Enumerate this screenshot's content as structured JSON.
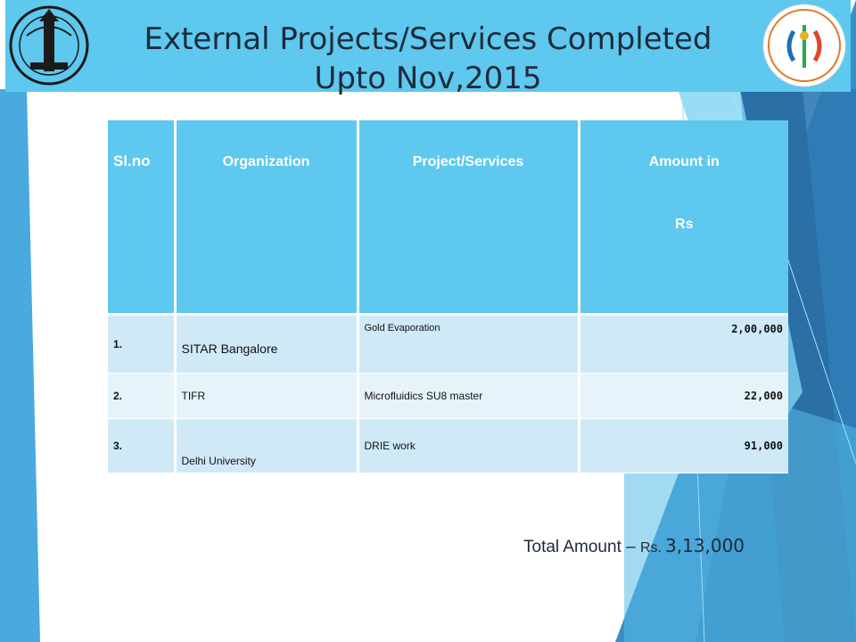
{
  "slide": {
    "title_line1": "External Projects/Services Completed",
    "title_line2": "Upto Nov,2015",
    "colors": {
      "header_bg": "#5ec8ee",
      "row_light": "#e6f3fb",
      "row_dark": "#cfe9f7",
      "accent_dark": "#2a6fa5"
    },
    "logos": {
      "left": "iisc-crest-icon",
      "right": "cense-logo-icon"
    }
  },
  "table": {
    "headers": {
      "sl": "Sl.no",
      "org": "Organization",
      "proj": "Project/Services",
      "amount_line1": "Amount in",
      "amount_line2": "Rs"
    },
    "rows": [
      {
        "sl": "1.",
        "organization": "SITAR Bangalore",
        "project": "Gold Evaporation",
        "amount": "2,00,000"
      },
      {
        "sl": "2.",
        "organization": "TIFR",
        "project": "Microfluidics SU8 master",
        "amount": "22,000"
      },
      {
        "sl": "3.",
        "organization": "Delhi University",
        "project": "DRIE work",
        "amount": "91,000"
      }
    ]
  },
  "total": {
    "label": "Total Amount – ",
    "rs": "Rs.",
    "value": "3,13,000"
  }
}
